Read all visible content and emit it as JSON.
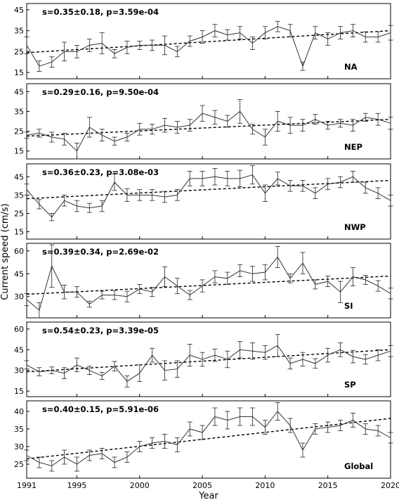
{
  "figure": {
    "xlabel": "Year",
    "ylabel": "Current speed (cm/s)",
    "x_ticks": [
      1991,
      1995,
      2000,
      2005,
      2010,
      2015,
      2020
    ]
  },
  "chart_data": [
    {
      "type": "line",
      "region_label": "NA",
      "stats_label": "s=0.35±0.18, p=3.59e-04",
      "xlim": [
        1991,
        2020
      ],
      "ylim": [
        12,
        48
      ],
      "y_ticks": [
        15,
        25,
        35,
        45
      ],
      "x": [
        1991,
        1992,
        1993,
        1994,
        1995,
        1996,
        1997,
        1998,
        1999,
        2000,
        2001,
        2002,
        2003,
        2004,
        2005,
        2006,
        2007,
        2008,
        2009,
        2010,
        2011,
        2012,
        2013,
        2014,
        2015,
        2016,
        2017,
        2018,
        2019,
        2020
      ],
      "values": [
        28,
        18,
        20,
        25,
        25,
        28,
        29,
        24,
        27,
        28,
        28,
        28,
        25,
        30,
        32,
        35,
        33,
        34,
        29,
        34,
        37,
        35,
        18,
        34,
        31,
        34,
        35,
        32,
        32,
        34
      ],
      "errors": [
        4,
        2.5,
        2.5,
        4.5,
        3,
        3,
        5,
        2,
        3,
        2,
        2.5,
        4.5,
        2.5,
        2.5,
        3,
        3,
        2.5,
        3,
        3,
        3,
        2.5,
        3,
        2,
        3,
        3,
        3,
        3,
        2.5,
        2.5,
        3.5
      ],
      "trend": [
        24.5,
        35.0
      ]
    },
    {
      "type": "line",
      "region_label": "NEP",
      "stats_label": "s=0.29±0.16, p=9.50e-04",
      "xlim": [
        1991,
        2020
      ],
      "ylim": [
        11,
        49
      ],
      "y_ticks": [
        15,
        25,
        35,
        45
      ],
      "x": [
        1991,
        1992,
        1993,
        1994,
        1995,
        1996,
        1997,
        1998,
        1999,
        2000,
        2001,
        2002,
        2003,
        2004,
        2005,
        2006,
        2007,
        2008,
        2009,
        2010,
        2011,
        2012,
        2013,
        2014,
        2015,
        2016,
        2017,
        2018,
        2019,
        2020
      ],
      "values": [
        23,
        24,
        22,
        21,
        15,
        27,
        23,
        20,
        22,
        26,
        26,
        28,
        27,
        28,
        34,
        32,
        30,
        35,
        26,
        22,
        30,
        28,
        28,
        31,
        28,
        29,
        28,
        32,
        31,
        29
      ],
      "errors": [
        1.5,
        2,
        2.5,
        3,
        4,
        5,
        3,
        2,
        2,
        3,
        2.5,
        3.5,
        3,
        3,
        4,
        3.5,
        3,
        6,
        2.5,
        4,
        5,
        4,
        3,
        2.5,
        2,
        2,
        3,
        2,
        3,
        3
      ],
      "trend": [
        22.5,
        31.0
      ]
    },
    {
      "type": "line",
      "region_label": "NWP",
      "stats_label": "s=0.36±0.23, p=3.08e-03",
      "xlim": [
        1991,
        2020
      ],
      "ylim": [
        11,
        52
      ],
      "y_ticks": [
        15,
        25,
        35,
        45
      ],
      "x": [
        1991,
        1992,
        1993,
        1994,
        1995,
        1996,
        1997,
        1998,
        1999,
        2000,
        2001,
        2002,
        2003,
        2004,
        2005,
        2006,
        2007,
        2008,
        2009,
        2010,
        2011,
        2012,
        2013,
        2014,
        2015,
        2016,
        2017,
        2018,
        2019,
        2020
      ],
      "values": [
        38,
        30,
        23,
        32,
        29,
        28,
        29,
        42,
        35,
        35,
        35,
        34,
        35,
        44,
        44,
        45,
        44,
        44,
        46,
        36,
        44,
        40,
        40,
        36,
        41,
        42,
        45,
        39,
        36,
        32
      ],
      "errors": [
        3,
        2.5,
        2,
        3,
        3,
        2.5,
        3,
        4.5,
        3.5,
        3,
        3,
        3,
        3,
        4,
        4,
        4.5,
        4,
        4.5,
        5,
        4.5,
        3.5,
        3,
        3,
        3,
        3,
        3,
        3,
        3,
        3,
        3
      ],
      "trend": [
        33.0,
        43.0
      ]
    },
    {
      "type": "line",
      "region_label": "SI",
      "stats_label": "s=0.39±0.34, p=2.69e-02",
      "xlim": [
        1991,
        2020
      ],
      "ylim": [
        16,
        65
      ],
      "y_ticks": [
        30,
        45,
        60
      ],
      "x": [
        1991,
        1992,
        1993,
        1994,
        1995,
        1996,
        1997,
        1998,
        1999,
        2000,
        2001,
        2002,
        2003,
        2004,
        2005,
        2006,
        2007,
        2008,
        2009,
        2010,
        2011,
        2012,
        2013,
        2014,
        2015,
        2016,
        2017,
        2018,
        2019,
        2020
      ],
      "values": [
        28,
        21,
        50,
        33,
        33,
        25,
        31,
        31,
        30,
        35,
        33,
        43,
        37,
        31,
        37,
        43,
        42,
        47,
        45,
        46,
        56,
        42,
        52,
        38,
        40,
        33,
        43,
        41,
        37,
        32
      ],
      "errors": [
        4,
        5,
        14,
        4.5,
        3.5,
        2,
        2.5,
        3,
        3.5,
        3,
        3,
        6.5,
        5,
        3,
        4,
        4,
        4,
        4,
        5,
        5,
        7,
        3,
        7,
        3,
        3.5,
        7,
        6,
        3,
        3.5,
        3.5
      ],
      "trend": [
        31.5,
        43.5
      ]
    },
    {
      "type": "line",
      "region_label": "SP",
      "stats_label": "s=0.54±0.23, p=3.39e-05",
      "xlim": [
        1991,
        2020
      ],
      "ylim": [
        11,
        65
      ],
      "y_ticks": [
        15,
        30,
        45,
        60
      ],
      "x": [
        1991,
        1992,
        1993,
        1994,
        1995,
        1996,
        1997,
        1998,
        1999,
        2000,
        2001,
        2002,
        2003,
        2004,
        2005,
        2006,
        2007,
        2008,
        2009,
        2010,
        2011,
        2012,
        2013,
        2014,
        2015,
        2016,
        2017,
        2018,
        2019,
        2020
      ],
      "values": [
        34,
        29,
        30,
        28,
        34,
        30,
        26,
        33,
        22,
        28,
        41,
        30,
        31,
        41,
        38,
        41,
        38,
        45,
        44,
        43,
        48,
        35,
        38,
        35,
        41,
        45,
        40,
        38,
        41,
        44
      ],
      "errors": [
        3,
        3,
        2.5,
        4,
        5,
        3,
        2.5,
        3.5,
        4,
        6,
        5,
        7,
        6,
        8,
        5,
        4.5,
        6,
        6,
        6,
        5,
        8,
        4,
        5,
        3.5,
        5,
        5,
        4.5,
        3.5,
        4,
        4
      ],
      "trend": [
        29.0,
        45.0
      ]
    },
    {
      "type": "line",
      "region_label": "Global",
      "stats_label": "s=0.40±0.15, p=5.91e-06",
      "xlim": [
        1991,
        2020
      ],
      "ylim": [
        21,
        43
      ],
      "y_ticks": [
        25,
        30,
        35,
        40
      ],
      "x": [
        1991,
        1992,
        1993,
        1994,
        1995,
        1996,
        1997,
        1998,
        1999,
        2000,
        2001,
        2002,
        2003,
        2004,
        2005,
        2006,
        2007,
        2008,
        2009,
        2010,
        2011,
        2012,
        2013,
        2014,
        2015,
        2016,
        2017,
        2018,
        2019,
        2020
      ],
      "values": [
        27.5,
        25.5,
        24.5,
        27,
        25,
        27.5,
        28,
        25.5,
        27,
        30,
        31,
        31.5,
        30.5,
        35,
        34,
        38.5,
        37.5,
        38.5,
        38.5,
        35.5,
        40,
        36,
        29,
        35,
        35.5,
        36,
        37.5,
        35,
        34.5,
        32.5
      ],
      "errors": [
        1.5,
        1.5,
        1.5,
        2,
        2,
        1.5,
        1.5,
        1.5,
        1.5,
        1.5,
        1.5,
        2,
        2,
        2,
        2,
        2.5,
        2.5,
        2.5,
        2.5,
        2,
        2.5,
        2,
        2,
        1.5,
        1.5,
        1.5,
        2,
        1.5,
        1.5,
        1.5
      ],
      "trend": [
        26.5,
        38.0
      ]
    }
  ]
}
